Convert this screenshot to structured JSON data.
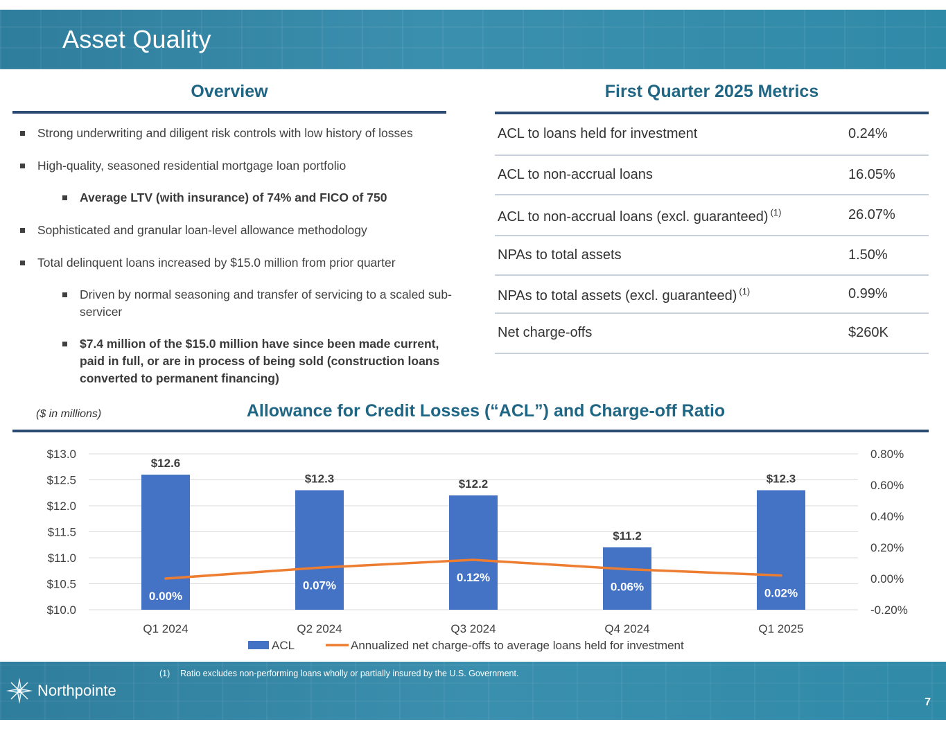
{
  "header": {
    "title": "Asset Quality"
  },
  "overview": {
    "heading": "Overview",
    "bullets": [
      {
        "text": "Strong underwriting and diligent risk controls with low history of losses",
        "level": 1,
        "bold": false
      },
      {
        "text": "High-quality, seasoned residential mortgage loan portfolio",
        "level": 1,
        "bold": false
      },
      {
        "text": "Average LTV (with insurance) of 74% and FICO of 750",
        "level": 2,
        "bold": true
      },
      {
        "text": "Sophisticated and granular loan-level allowance methodology",
        "level": 1,
        "bold": false
      },
      {
        "text": "Total delinquent loans increased by $15.0 million from prior quarter",
        "level": 1,
        "bold": false
      },
      {
        "text": "Driven by normal seasoning and transfer of servicing to a scaled sub-servicer",
        "level": 2,
        "bold": false
      },
      {
        "text": "$7.4 million of the $15.0 million have since been made current, paid in full, or are in process of being sold (construction loans converted to permanent financing)",
        "level": 2,
        "bold": true
      }
    ]
  },
  "metrics": {
    "heading": "First Quarter 2025 Metrics",
    "rows": [
      {
        "label": "ACL to loans held for investment",
        "note": "",
        "value": "0.24%"
      },
      {
        "label": "ACL to non-accrual loans",
        "note": "",
        "value": "16.05%"
      },
      {
        "label": "ACL to non-accrual loans (excl. guaranteed)",
        "note": "(1)",
        "value": "26.07%"
      },
      {
        "label": "NPAs to total assets",
        "note": "",
        "value": "1.50%"
      },
      {
        "label": "NPAs to total assets (excl. guaranteed)",
        "note": "(1)",
        "value": "0.99%"
      },
      {
        "label": "Net charge-offs",
        "note": "",
        "value": "$260K"
      }
    ]
  },
  "chart_section": {
    "units_note": "($ in millions)",
    "heading": "Allowance for Credit Losses (“ACL”) and Charge-off Ratio"
  },
  "chart_data": {
    "type": "bar",
    "categories": [
      "Q1 2024",
      "Q2 2024",
      "Q3 2024",
      "Q4 2024",
      "Q1 2025"
    ],
    "series": [
      {
        "name": "ACL",
        "type": "bar",
        "axis": "left",
        "color": "#4472c4",
        "values": [
          12.6,
          12.3,
          12.2,
          11.2,
          12.3
        ],
        "labels": [
          "$12.6",
          "$12.3",
          "$12.2",
          "$11.2",
          "$12.3"
        ]
      },
      {
        "name": "Annualized net charge-offs to average loans held for investment",
        "type": "line",
        "axis": "right",
        "color": "#ed7d31",
        "values": [
          0.0,
          0.07,
          0.12,
          0.06,
          0.02
        ],
        "labels": [
          "0.00%",
          "0.07%",
          "0.12%",
          "0.06%",
          "0.02%"
        ]
      }
    ],
    "y_left": {
      "min": 10.0,
      "max": 13.0,
      "ticks": [
        "$13.0",
        "$12.5",
        "$12.0",
        "$11.5",
        "$11.0",
        "$10.5",
        "$10.0"
      ]
    },
    "y_right": {
      "min": -0.2,
      "max": 0.8,
      "ticks": [
        "0.80%",
        "0.60%",
        "0.40%",
        "0.20%",
        "0.00%",
        "-0.20%"
      ]
    },
    "grid": true,
    "legend_position": "bottom"
  },
  "footer": {
    "footnote_number": "(1)",
    "footnote": "Ratio excludes non-performing loans wholly or partially insured by the U.S. Government.",
    "logo_text": "Northpointe",
    "page_number": "7"
  }
}
